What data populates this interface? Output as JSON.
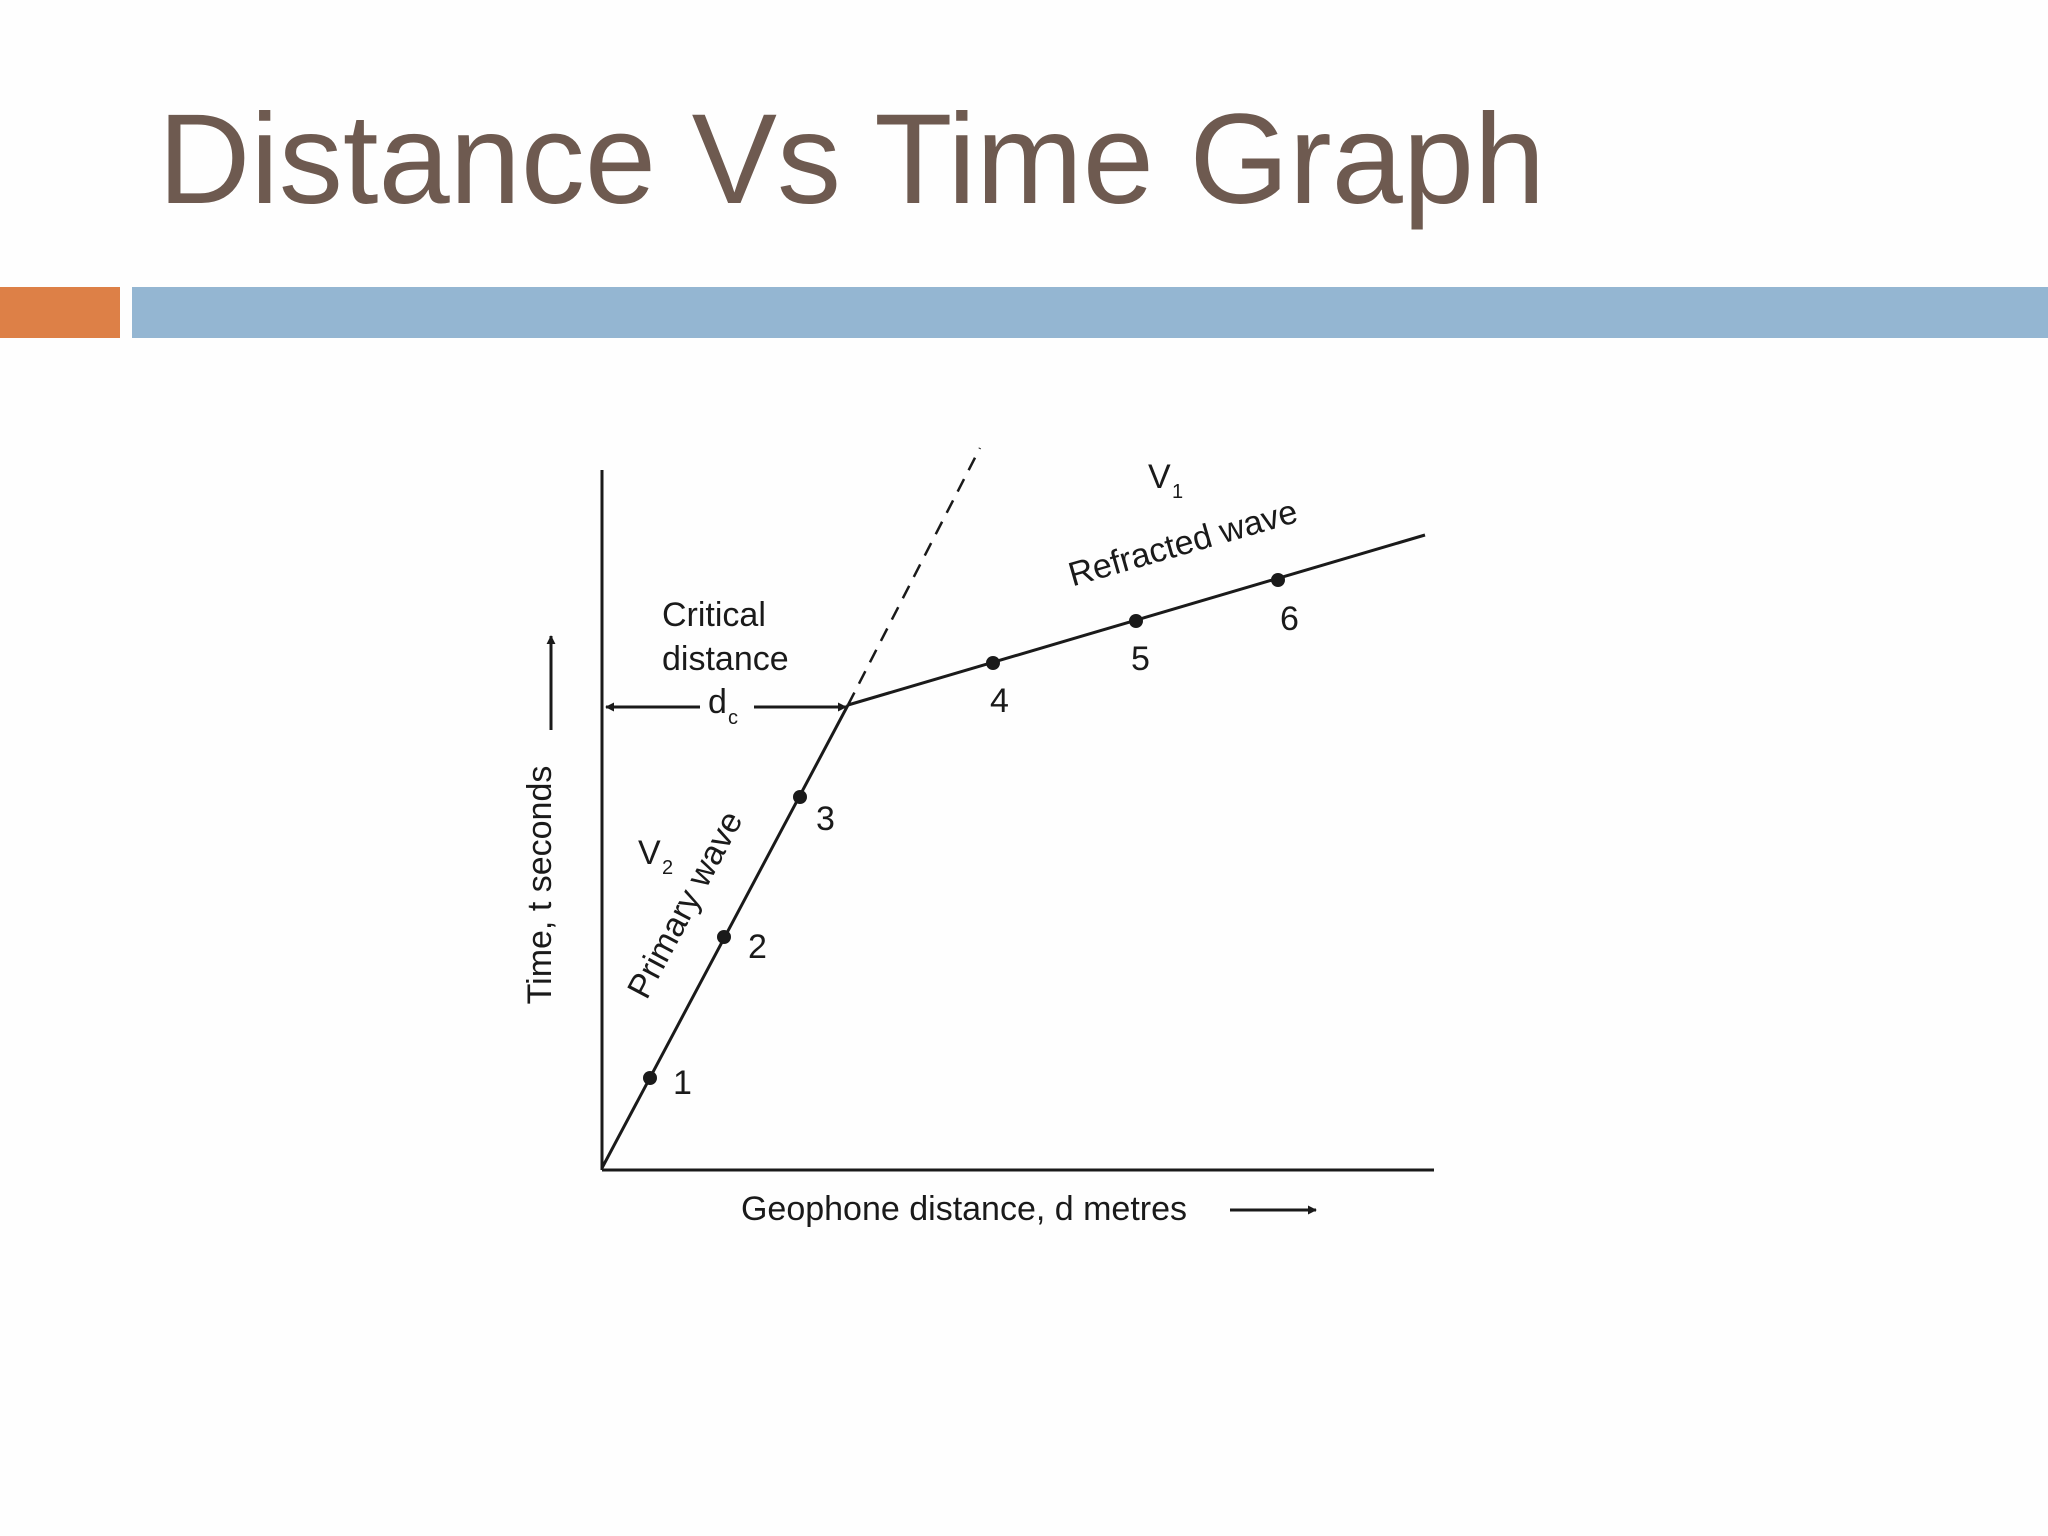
{
  "slide": {
    "title": "Distance Vs Time Graph",
    "accent_color": "#dd8047",
    "bar_color": "#94b6d2",
    "title_color": "#6e5a50"
  },
  "diagram": {
    "y_axis_label": "Time, t seconds",
    "x_axis_label": "Geophone distance, d metres",
    "critical_label_line1": "Critical",
    "critical_label_line2": "distance",
    "critical_symbol": "d",
    "critical_symbol_sub": "c",
    "primary_velocity": "V",
    "primary_velocity_sub": "2",
    "primary_label": "Primary wave",
    "refracted_velocity": "V",
    "refracted_velocity_sub": "1",
    "refracted_label": "Refracted wave",
    "points": [
      "1",
      "2",
      "3",
      "4",
      "5",
      "6"
    ]
  }
}
